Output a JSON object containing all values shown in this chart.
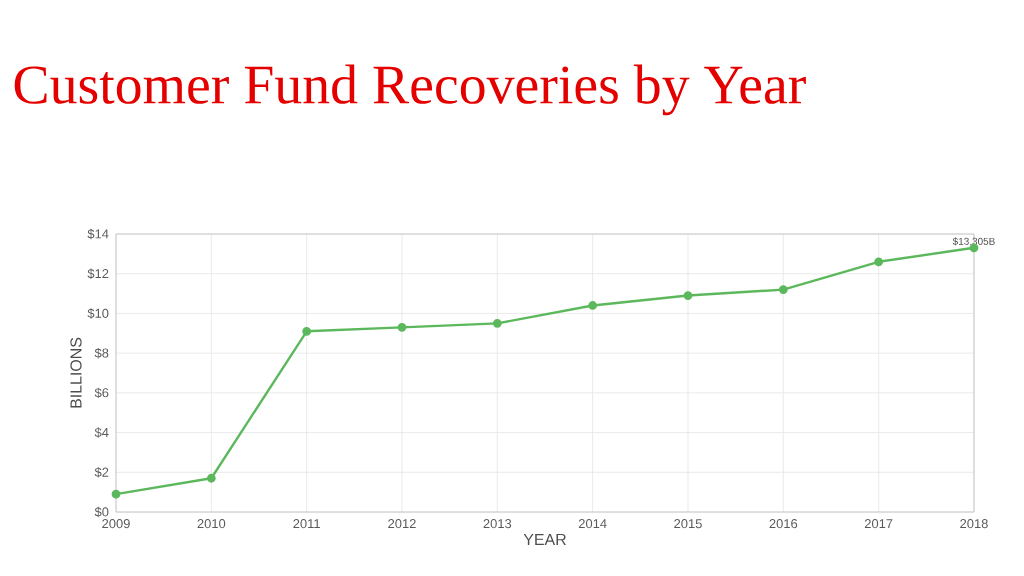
{
  "chart_data": {
    "type": "line",
    "title": "Customer Fund Recoveries by Year",
    "xlabel": "YEAR",
    "ylabel": "BILLIONS",
    "x": [
      2009,
      2010,
      2011,
      2012,
      2013,
      2014,
      2015,
      2016,
      2017,
      2018
    ],
    "series": [
      {
        "color": "#5cb85c",
        "values": [
          0.9,
          1.7,
          9.1,
          9.3,
          9.5,
          10.4,
          10.9,
          11.2,
          12.6,
          13.305
        ]
      }
    ],
    "xlim": [
      2009,
      2018
    ],
    "xticks": [
      2009,
      2010,
      2011,
      2012,
      2013,
      2014,
      2015,
      2016,
      2017,
      2018
    ],
    "ylim": [
      0,
      14
    ],
    "yticks": [
      {
        "value": 0,
        "label": "$0"
      },
      {
        "value": 2,
        "label": "$2"
      },
      {
        "value": 4,
        "label": "$4"
      },
      {
        "value": 6,
        "label": "$6"
      },
      {
        "value": 8,
        "label": "$8"
      },
      {
        "value": 10,
        "label": "$10"
      },
      {
        "value": 12,
        "label": "$12"
      },
      {
        "value": 14,
        "label": "$14"
      }
    ],
    "annotations": [
      {
        "text": "$13.305B",
        "x": 2018,
        "y": 13.305
      }
    ],
    "grid": true,
    "marker": "circle",
    "line_style": "solid"
  }
}
